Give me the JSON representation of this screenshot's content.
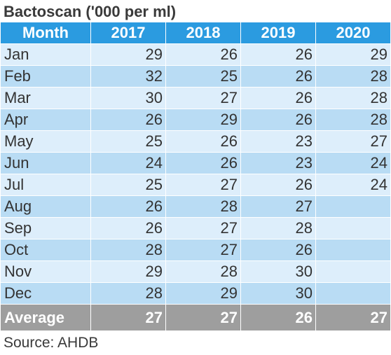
{
  "title": "Bactoscan ('000 per ml)",
  "header": {
    "month_label": "Month",
    "years": [
      "2017",
      "2018",
      "2019",
      "2020"
    ]
  },
  "rows": [
    {
      "month": "Jan",
      "values": [
        "29",
        "26",
        "26",
        "29"
      ]
    },
    {
      "month": "Feb",
      "values": [
        "32",
        "25",
        "26",
        "28"
      ]
    },
    {
      "month": "Mar",
      "values": [
        "30",
        "27",
        "26",
        "28"
      ]
    },
    {
      "month": "Apr",
      "values": [
        "26",
        "29",
        "26",
        "28"
      ]
    },
    {
      "month": "May",
      "values": [
        "25",
        "26",
        "23",
        "27"
      ]
    },
    {
      "month": "Jun",
      "values": [
        "24",
        "26",
        "23",
        "24"
      ]
    },
    {
      "month": "Jul",
      "values": [
        "25",
        "27",
        "26",
        "24"
      ]
    },
    {
      "month": "Aug",
      "values": [
        "26",
        "28",
        "27",
        ""
      ]
    },
    {
      "month": "Sep",
      "values": [
        "26",
        "27",
        "28",
        ""
      ]
    },
    {
      "month": "Oct",
      "values": [
        "28",
        "27",
        "26",
        ""
      ]
    },
    {
      "month": "Nov",
      "values": [
        "29",
        "28",
        "30",
        ""
      ]
    },
    {
      "month": "Dec",
      "values": [
        "28",
        "29",
        "30",
        ""
      ]
    }
  ],
  "average": {
    "label": "Average",
    "values": [
      "27",
      "27",
      "26",
      "27"
    ]
  },
  "source": "Source: AHDB",
  "colors": {
    "header_bg": "#2b9be0",
    "row_light": "#ddeefb",
    "row_dark": "#b9dcf4",
    "average_bg": "#9e9e9e"
  }
}
